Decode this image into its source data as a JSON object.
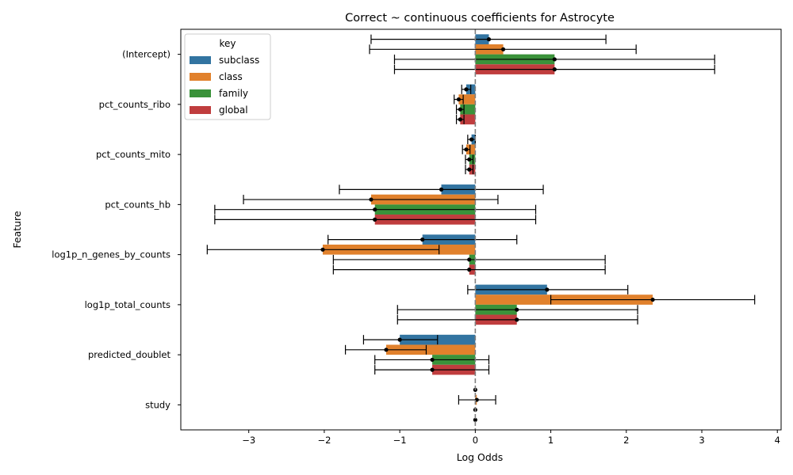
{
  "chart_data": {
    "type": "bar",
    "orientation": "horizontal",
    "title": "Correct ~ continuous coefficients for Astrocyte",
    "xlabel": "Log Odds",
    "ylabel": "Feature",
    "xlim": [
      -3.9,
      4.05
    ],
    "xticks": [
      -3,
      -2,
      -1,
      0,
      1,
      2,
      3,
      4
    ],
    "reference_line": 0,
    "legend_title": "key",
    "legend_position": "top-left",
    "categories": [
      "(Intercept)",
      "pct_counts_ribo",
      "pct_counts_mito",
      "pct_counts_hb",
      "log1p_n_genes_by_counts",
      "log1p_total_counts",
      "predicted_doublet",
      "study"
    ],
    "series": [
      {
        "name": "subclass",
        "color": "#3274a1",
        "values": [
          0.18,
          -0.12,
          -0.05,
          -0.45,
          -0.7,
          0.95,
          -1.0,
          0.0
        ],
        "err_low": [
          -1.38,
          -0.18,
          -0.1,
          -1.8,
          -1.95,
          -0.1,
          -1.48,
          0.0
        ],
        "err_high": [
          1.73,
          -0.06,
          0.0,
          0.9,
          0.55,
          2.02,
          -0.5,
          0.0
        ]
      },
      {
        "name": "class",
        "color": "#e1812c",
        "values": [
          0.37,
          -0.22,
          -0.12,
          -1.38,
          -2.02,
          2.35,
          -1.18,
          0.02
        ],
        "err_low": [
          -1.4,
          -0.28,
          -0.17,
          -3.07,
          -3.55,
          1.0,
          -1.72,
          -0.22
        ],
        "err_high": [
          2.13,
          -0.16,
          -0.07,
          0.3,
          -0.48,
          3.7,
          -0.65,
          0.27
        ]
      },
      {
        "name": "family",
        "color": "#3a923a",
        "values": [
          1.05,
          -0.2,
          -0.08,
          -1.33,
          -0.08,
          0.55,
          -0.57,
          0.0
        ],
        "err_low": [
          -1.07,
          -0.25,
          -0.13,
          -3.45,
          -1.88,
          -1.03,
          -1.33,
          0.0
        ],
        "err_high": [
          3.17,
          -0.15,
          -0.03,
          0.8,
          1.72,
          2.15,
          0.18,
          0.0
        ]
      },
      {
        "name": "global",
        "color": "#c03d3e",
        "values": [
          1.05,
          -0.2,
          -0.08,
          -1.33,
          -0.08,
          0.55,
          -0.57,
          0.0
        ],
        "err_low": [
          -1.07,
          -0.25,
          -0.13,
          -3.45,
          -1.88,
          -1.03,
          -1.33,
          0.0
        ],
        "err_high": [
          3.17,
          -0.15,
          -0.03,
          0.8,
          1.72,
          2.15,
          0.18,
          0.0
        ]
      }
    ]
  }
}
